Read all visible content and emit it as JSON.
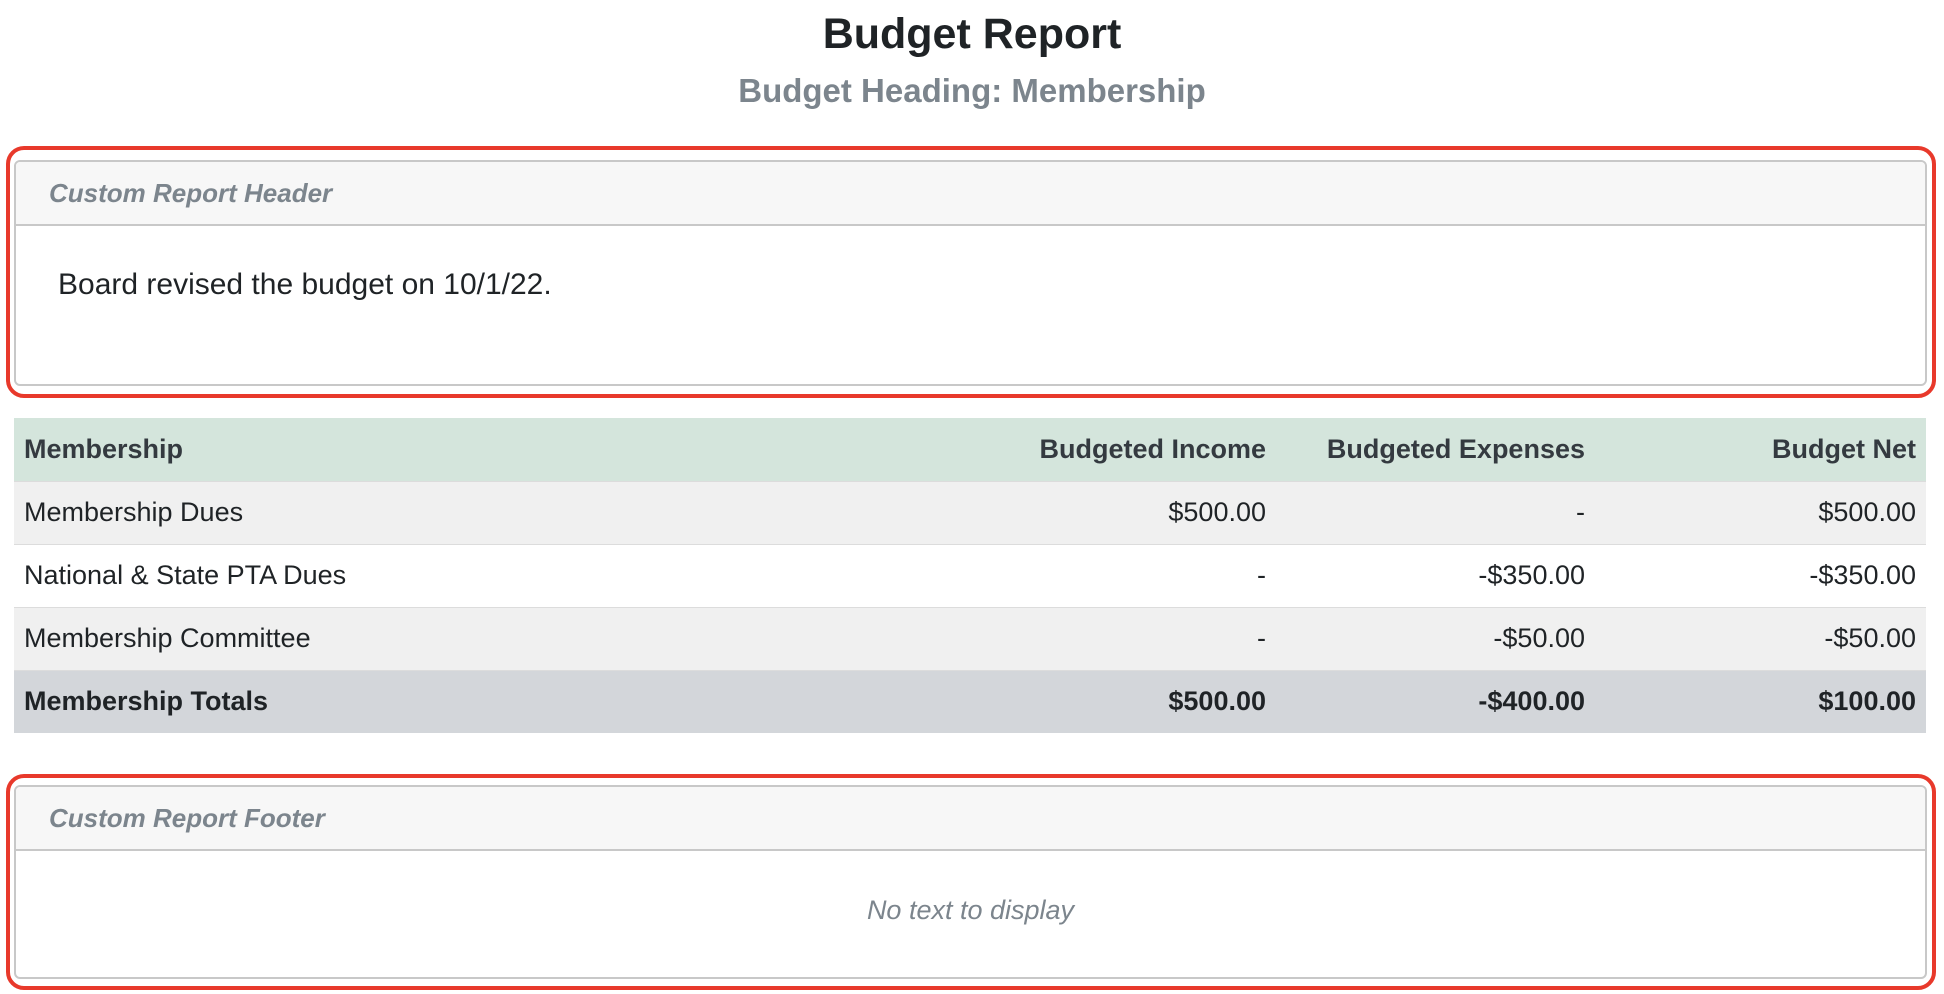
{
  "report": {
    "title": "Budget Report",
    "subtitle": "Budget Heading: Membership"
  },
  "custom_header": {
    "title": "Custom Report Header",
    "text": "Board revised the budget on 10/1/22."
  },
  "table": {
    "columns": [
      "Membership",
      "Budgeted Income",
      "Budgeted Expenses",
      "Budget Net"
    ],
    "rows": [
      {
        "name": "Membership Dues",
        "income": "$500.00",
        "expenses": "-",
        "net": "$500.00"
      },
      {
        "name": "National & State PTA Dues",
        "income": "-",
        "expenses": "-$350.00",
        "net": "-$350.00"
      },
      {
        "name": "Membership Committee",
        "income": "-",
        "expenses": "-$50.00",
        "net": "-$50.00"
      }
    ],
    "totals": {
      "name": "Membership Totals",
      "income": "$500.00",
      "expenses": "-$400.00",
      "net": "$100.00"
    }
  },
  "custom_footer": {
    "title": "Custom Report Footer",
    "empty_text": "No text to display"
  },
  "colors": {
    "annotation_border": "#e8392b",
    "table_header_bg": "#d4e5dc",
    "totals_row_bg": "#d3d6da"
  }
}
